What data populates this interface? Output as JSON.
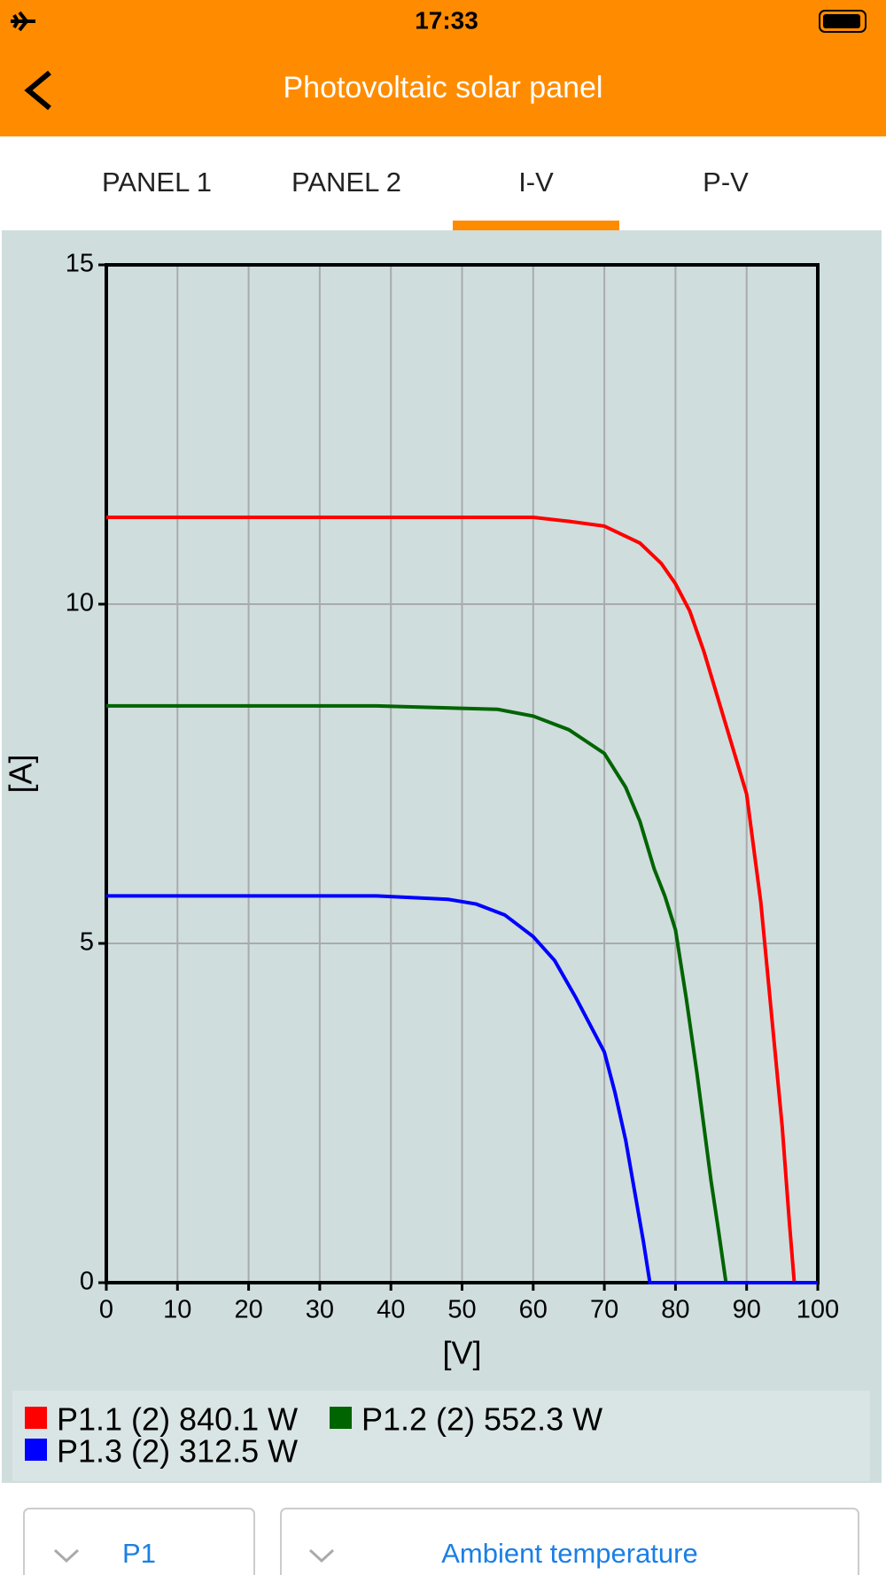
{
  "ui": {
    "status_time": "17:33",
    "header_title": "Photovoltaic solar panel",
    "tabs": [
      "PANEL 1",
      "PANEL 2",
      "I-V",
      "P-V"
    ],
    "dropdowns": [
      "P1",
      "Ambient temperature"
    ]
  },
  "chart_data": {
    "type": "line",
    "x_label": "[V]",
    "y_label": "[A]",
    "xlim": [
      0,
      100
    ],
    "ylim": [
      0,
      15
    ],
    "xticks": [
      0,
      10,
      20,
      30,
      40,
      50,
      60,
      70,
      80,
      90,
      100
    ],
    "yticks": [
      0,
      5,
      10,
      15
    ],
    "grid": true,
    "series": [
      {
        "name": "P1.1 (2) 840.1 W",
        "color": "#ff0000",
        "x": [
          0,
          60,
          65,
          70,
          75,
          78,
          80,
          82,
          84,
          86,
          88,
          90,
          92,
          94,
          95,
          96,
          96.7,
          100
        ],
        "values": [
          11.28,
          11.28,
          11.22,
          11.15,
          10.9,
          10.6,
          10.3,
          9.9,
          9.3,
          8.6,
          7.9,
          7.2,
          5.6,
          3.4,
          2.3,
          0.9,
          0,
          0
        ]
      },
      {
        "name": "P1.2 (2) 552.3 W",
        "color": "#006400",
        "x": [
          0,
          38,
          55,
          60,
          65,
          70,
          73,
          75,
          77,
          78.5,
          80,
          81.5,
          83,
          85,
          86,
          87.1,
          100
        ],
        "values": [
          8.5,
          8.5,
          8.45,
          8.35,
          8.15,
          7.8,
          7.3,
          6.8,
          6.1,
          5.7,
          5.2,
          4.2,
          3.1,
          1.5,
          0.8,
          0,
          0
        ]
      },
      {
        "name": "P1.3 (2) 312.5 W",
        "color": "#0000ff",
        "x": [
          0,
          38,
          48,
          52,
          56,
          60,
          63,
          66,
          68,
          70,
          71.5,
          73,
          74.5,
          75.5,
          76.4,
          100
        ],
        "values": [
          5.7,
          5.7,
          5.65,
          5.58,
          5.42,
          5.1,
          4.75,
          4.2,
          3.8,
          3.4,
          2.8,
          2.1,
          1.2,
          0.6,
          0,
          0
        ]
      }
    ]
  }
}
